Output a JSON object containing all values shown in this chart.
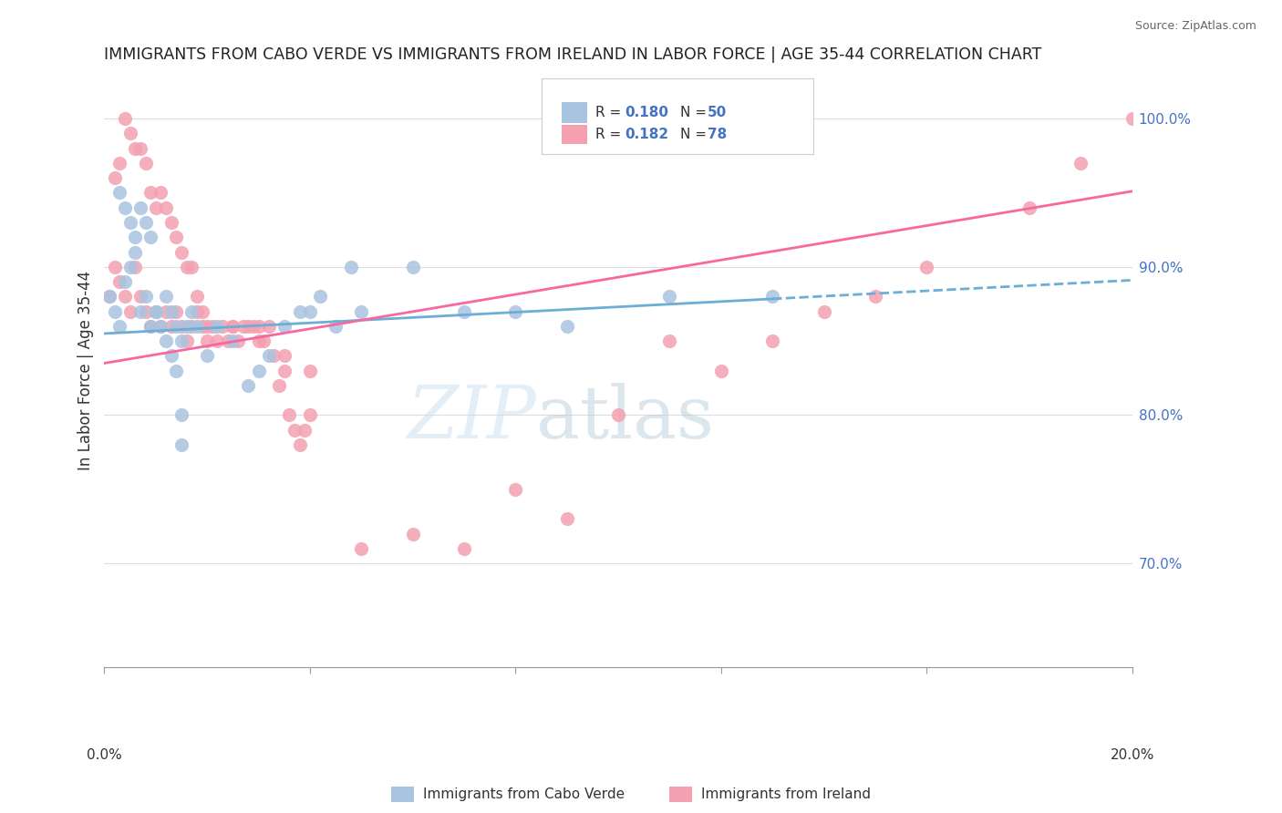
{
  "title": "IMMIGRANTS FROM CABO VERDE VS IMMIGRANTS FROM IRELAND IN LABOR FORCE | AGE 35-44 CORRELATION CHART",
  "source": "Source: ZipAtlas.com",
  "ylabel": "In Labor Force | Age 35-44",
  "xmin": 0.0,
  "xmax": 0.2,
  "ymin": 0.63,
  "ymax": 1.03,
  "cabo_verde_color": "#a8c4e0",
  "ireland_color": "#f4a0b0",
  "cabo_verde_R": 0.18,
  "cabo_verde_N": 50,
  "ireland_R": 0.182,
  "ireland_N": 78,
  "cabo_verde_x": [
    0.001,
    0.002,
    0.003,
    0.004,
    0.005,
    0.006,
    0.007,
    0.008,
    0.009,
    0.01,
    0.012,
    0.013,
    0.014,
    0.015,
    0.016,
    0.017,
    0.018,
    0.02,
    0.022,
    0.025,
    0.028,
    0.03,
    0.032,
    0.035,
    0.038,
    0.04,
    0.042,
    0.045,
    0.048,
    0.05,
    0.003,
    0.004,
    0.005,
    0.006,
    0.007,
    0.008,
    0.009,
    0.01,
    0.011,
    0.012,
    0.013,
    0.014,
    0.015,
    0.06,
    0.07,
    0.08,
    0.09,
    0.11,
    0.13,
    0.015
  ],
  "cabo_verde_y": [
    0.88,
    0.87,
    0.86,
    0.89,
    0.9,
    0.91,
    0.87,
    0.88,
    0.86,
    0.87,
    0.88,
    0.87,
    0.86,
    0.85,
    0.86,
    0.87,
    0.86,
    0.84,
    0.86,
    0.85,
    0.82,
    0.83,
    0.84,
    0.86,
    0.87,
    0.87,
    0.88,
    0.86,
    0.9,
    0.87,
    0.95,
    0.94,
    0.93,
    0.92,
    0.94,
    0.93,
    0.92,
    0.87,
    0.86,
    0.85,
    0.84,
    0.83,
    0.8,
    0.9,
    0.87,
    0.87,
    0.86,
    0.88,
    0.88,
    0.78
  ],
  "ireland_x": [
    0.001,
    0.002,
    0.003,
    0.004,
    0.005,
    0.006,
    0.007,
    0.008,
    0.009,
    0.01,
    0.011,
    0.012,
    0.013,
    0.014,
    0.015,
    0.016,
    0.017,
    0.018,
    0.019,
    0.02,
    0.021,
    0.022,
    0.023,
    0.024,
    0.025,
    0.026,
    0.027,
    0.028,
    0.029,
    0.03,
    0.031,
    0.032,
    0.033,
    0.034,
    0.035,
    0.036,
    0.037,
    0.038,
    0.039,
    0.04,
    0.002,
    0.003,
    0.004,
    0.005,
    0.006,
    0.007,
    0.008,
    0.009,
    0.01,
    0.011,
    0.012,
    0.013,
    0.014,
    0.015,
    0.016,
    0.017,
    0.018,
    0.019,
    0.02,
    0.025,
    0.03,
    0.035,
    0.04,
    0.05,
    0.06,
    0.07,
    0.08,
    0.09,
    0.1,
    0.11,
    0.12,
    0.13,
    0.14,
    0.15,
    0.16,
    0.18,
    0.19,
    0.2
  ],
  "ireland_y": [
    0.88,
    0.9,
    0.89,
    0.88,
    0.87,
    0.9,
    0.88,
    0.87,
    0.86,
    0.87,
    0.86,
    0.87,
    0.86,
    0.87,
    0.86,
    0.85,
    0.86,
    0.87,
    0.86,
    0.85,
    0.86,
    0.85,
    0.86,
    0.85,
    0.86,
    0.85,
    0.86,
    0.86,
    0.86,
    0.86,
    0.85,
    0.86,
    0.84,
    0.82,
    0.83,
    0.8,
    0.79,
    0.78,
    0.79,
    0.8,
    0.96,
    0.97,
    1.0,
    0.99,
    0.98,
    0.98,
    0.97,
    0.95,
    0.94,
    0.95,
    0.94,
    0.93,
    0.92,
    0.91,
    0.9,
    0.9,
    0.88,
    0.87,
    0.86,
    0.86,
    0.85,
    0.84,
    0.83,
    0.71,
    0.72,
    0.71,
    0.75,
    0.73,
    0.8,
    0.85,
    0.83,
    0.85,
    0.87,
    0.88,
    0.9,
    0.94,
    0.97,
    1.0
  ],
  "cabo_verde_trend_y_intercept": 0.855,
  "cabo_verde_trend_slope": 0.18,
  "ireland_trend_y_intercept": 0.835,
  "ireland_trend_slope": 0.58,
  "trend_blue": "#6baed6",
  "trend_pink": "#f768a1",
  "watermark_zip": "ZIP",
  "watermark_atlas": "atlas",
  "legend_box_color_blue": "#a8c4e0",
  "legend_box_color_pink": "#f4a0b0",
  "grid_color": "#dddddd",
  "background_color": "#ffffff",
  "right_ytick_color": "#4472c4",
  "bottom_label_blue": "Immigrants from Cabo Verde",
  "bottom_label_pink": "Immigrants from Ireland"
}
